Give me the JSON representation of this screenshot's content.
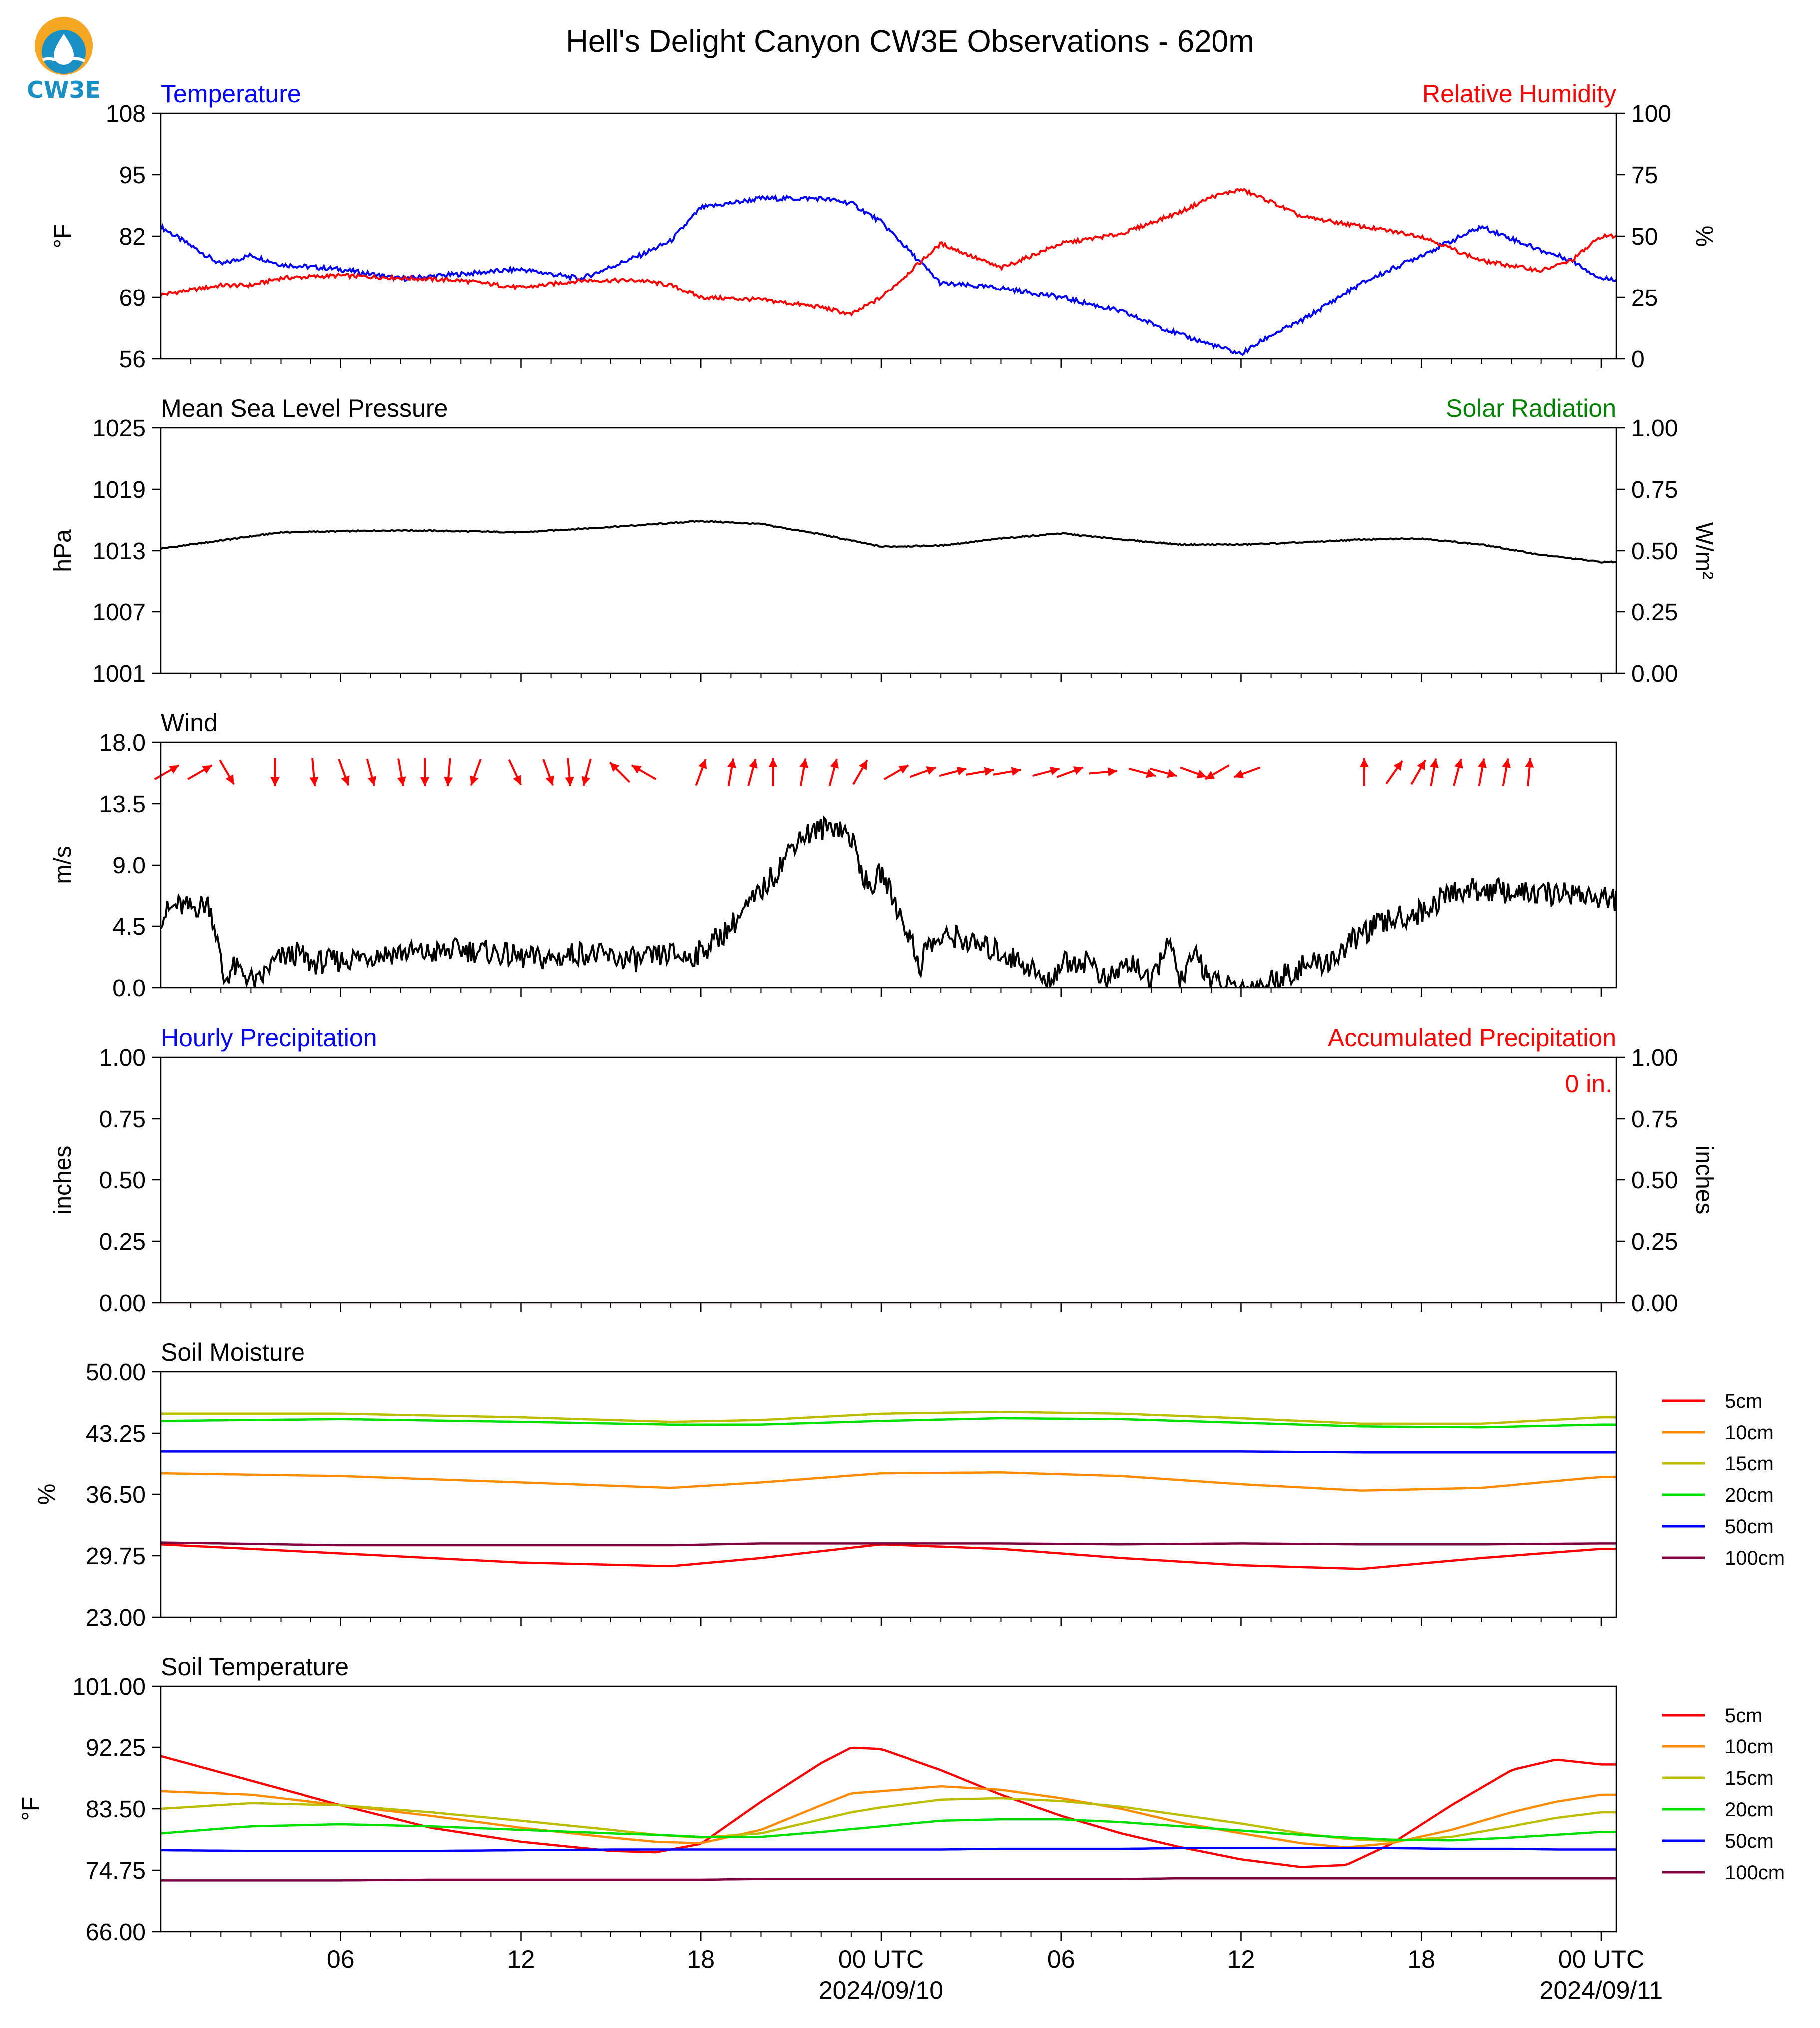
{
  "figure": {
    "title": "Hell's Delight Canyon CW3E Observations - 620m",
    "logo_text": "CW3E",
    "x_ticks": [
      "06",
      "12",
      "18",
      "00 UTC",
      "06",
      "12",
      "18",
      "00 UTC"
    ],
    "x_dates": [
      "2024/09/10",
      "2024/09/11"
    ]
  },
  "colors": {
    "temperature": "#0000ff",
    "humidity": "#ff0000",
    "solar": "#008000",
    "black": "#000000",
    "soil": [
      "#ff0000",
      "#ff8c00",
      "#bdbd00",
      "#00e000",
      "#0000ff",
      "#800040"
    ]
  },
  "chart_data": [
    {
      "id": "temp_rh",
      "type": "line",
      "left_title": "Temperature",
      "right_title": "Relative Humidity",
      "ylabel": "°F",
      "y2label": "%",
      "ylim": [
        56,
        108
      ],
      "yticks": [
        "56",
        "69",
        "82",
        "95",
        "108"
      ],
      "y2lim": [
        0,
        100
      ],
      "y2ticks": [
        "0",
        "25",
        "50",
        "75",
        "100"
      ],
      "x_hours": [
        0,
        2,
        3,
        4,
        6,
        8,
        10,
        12,
        14,
        16,
        17,
        18,
        20,
        22,
        23,
        24,
        26,
        28,
        30,
        32,
        34,
        35,
        36,
        37,
        38,
        40,
        42,
        44,
        46,
        47,
        48
      ],
      "series": [
        {
          "name": "Temperature",
          "axis": "left",
          "values": [
            84,
            76,
            78,
            76,
            75,
            73,
            74,
            75,
            73,
            78,
            81,
            88,
            90,
            90,
            89,
            85,
            72,
            71,
            69,
            66,
            61,
            59,
            57,
            61,
            64,
            72,
            78,
            84,
            79,
            77,
            73
          ]
        },
        {
          "name": "Relative Humidity",
          "axis": "right",
          "values": [
            26,
            30,
            30,
            33,
            34,
            33,
            32,
            29,
            32,
            32,
            30,
            25,
            24,
            21,
            18,
            25,
            47,
            37,
            47,
            51,
            60,
            66,
            69,
            64,
            58,
            54,
            50,
            40,
            36,
            40,
            50
          ]
        }
      ]
    },
    {
      "id": "pressure",
      "type": "line",
      "left_title": "Mean Sea Level Pressure",
      "right_title": "Solar Radiation",
      "ylabel": "hPa",
      "y2label": "W/m²",
      "ylim": [
        1001,
        1025
      ],
      "yticks": [
        "1001",
        "1007",
        "1013",
        "1019",
        "1025"
      ],
      "y2lim": [
        0,
        1
      ],
      "y2ticks": [
        "0.00",
        "0.25",
        "0.50",
        "0.75",
        "1.00"
      ],
      "x_hours": [
        0,
        4,
        8,
        12,
        16,
        18,
        20,
        22,
        24,
        26,
        28,
        30,
        32,
        34,
        36,
        38,
        40,
        42,
        44,
        46,
        48
      ],
      "series": [
        {
          "name": "Mean Sea Level Pressure",
          "axis": "left",
          "values": [
            1013.2,
            1014.8,
            1015.0,
            1014.8,
            1015.5,
            1015.9,
            1015.6,
            1014.6,
            1013.4,
            1013.5,
            1014.2,
            1014.7,
            1014.1,
            1013.6,
            1013.6,
            1013.8,
            1014.1,
            1014.2,
            1013.6,
            1012.6,
            1011.9
          ]
        }
      ]
    },
    {
      "id": "wind",
      "type": "line",
      "left_title": "Wind",
      "ylabel": "m/s",
      "ylim": [
        0,
        18
      ],
      "yticks": [
        "0.0",
        "4.5",
        "9.0",
        "13.5",
        "18.0"
      ],
      "x_hours": [
        0,
        0.5,
        1,
        1.6,
        1.8,
        2.1,
        2.4,
        2.8,
        3.2,
        3.6,
        4,
        4.6,
        5,
        6,
        7,
        8,
        9,
        10,
        11,
        12,
        13,
        14,
        15,
        16,
        17,
        17.5,
        18,
        19,
        19.8,
        20.5,
        21.2,
        21.8,
        22.5,
        23,
        23.3,
        23.6,
        24,
        24.5,
        25,
        25.3,
        25.5,
        26,
        26.5,
        27,
        28,
        29,
        29.5,
        30,
        31,
        31.5,
        32,
        32.5,
        33,
        33.5,
        34,
        34.5,
        35,
        35.5,
        36,
        36.5,
        37,
        38,
        39,
        40,
        41,
        42,
        43,
        44,
        45,
        46,
        47,
        48
      ],
      "series": [
        {
          "name": "Wind speed",
          "axis": "left",
          "values": [
            5.2,
            6.0,
            5.8,
            6.2,
            4.5,
            0.5,
            1.5,
            1.0,
            0.2,
            1.5,
            2.2,
            2.5,
            1.8,
            2.0,
            2.4,
            2.6,
            2.5,
            2.8,
            2.6,
            2.2,
            2.1,
            2.6,
            2.2,
            2.0,
            2.5,
            2.2,
            2.6,
            4.5,
            6.5,
            8.5,
            11.0,
            11.5,
            12.0,
            11.0,
            9.0,
            7.0,
            8.5,
            6.0,
            3.5,
            1.5,
            3.0,
            3.5,
            3.8,
            3.2,
            2.6,
            1.5,
            0.2,
            1.8,
            2.0,
            0.3,
            1.5,
            1.8,
            0.0,
            3.5,
            0.5,
            2.5,
            0.5,
            0.0,
            0.0,
            0.0,
            0.5,
            1.5,
            2.0,
            4.0,
            5.0,
            5.5,
            7.0,
            7.2,
            7.0,
            6.8,
            7.0,
            6.5
          ]
        }
      ],
      "vectors": {
        "hours": [
          0.2,
          1.3,
          2.2,
          3.8,
          5.1,
          6.1,
          7.0,
          8.0,
          8.8,
          9.6,
          10.5,
          11.8,
          12.9,
          13.6,
          14.2,
          15.3,
          16.1,
          18.0,
          19.0,
          19.7,
          20.4,
          21.4,
          22.4,
          23.3,
          24.5,
          25.4,
          26.4,
          27.3,
          28.2,
          29.5,
          30.3,
          31.4,
          32.7,
          33.4,
          34.4,
          35.2,
          36.2,
          40.1,
          41.1,
          41.9,
          42.4,
          43.2,
          44.0,
          44.8,
          45.6
        ],
        "directions_deg": [
          240,
          240,
          330,
          360,
          355,
          340,
          345,
          350,
          360,
          5,
          20,
          335,
          340,
          355,
          15,
          135,
          120,
          200,
          190,
          195,
          180,
          190,
          195,
          210,
          240,
          250,
          255,
          260,
          260,
          255,
          250,
          265,
          285,
          285,
          290,
          60,
          70,
          180,
          215,
          210,
          190,
          195,
          190,
          190,
          185
        ],
        "speeds": [
          6,
          6,
          0.5,
          1.5,
          2.2,
          2.4,
          2.6,
          2.5,
          2.6,
          2.7,
          2.5,
          2.2,
          2.4,
          2.3,
          2.0,
          2.4,
          2.5,
          3.0,
          5.5,
          6.5,
          8.5,
          11.5,
          11.0,
          7.0,
          3.5,
          3.5,
          3.0,
          2.5,
          1.5,
          1.8,
          0.5,
          1.5,
          3.0,
          0.5,
          1.5,
          1.0,
          1.5,
          2.0,
          4.5,
          5.5,
          6.5,
          7.0,
          7.2,
          7.0,
          6.8
        ],
        "unit": "m/s"
      }
    },
    {
      "id": "precip",
      "type": "line",
      "left_title": "Hourly Precipitation",
      "right_title": "Accumulated Precipitation",
      "annotation": "0 in.",
      "ylabel": "inches",
      "y2label": "inches",
      "ylim": [
        0,
        1
      ],
      "yticks": [
        "0.00",
        "0.25",
        "0.50",
        "0.75",
        "1.00"
      ],
      "y2lim": [
        0,
        1
      ],
      "y2ticks": [
        "0.00",
        "0.25",
        "0.50",
        "0.75",
        "1.00"
      ],
      "x_hours": [
        0,
        48
      ],
      "series": [
        {
          "name": "Hourly Precipitation",
          "axis": "left",
          "values": [
            0,
            0
          ]
        },
        {
          "name": "Accumulated Precipitation",
          "axis": "right",
          "values": [
            0,
            0
          ]
        }
      ]
    },
    {
      "id": "soil_moisture",
      "type": "line",
      "left_title": "Soil Moisture",
      "ylabel": "%",
      "ylim": [
        23,
        50
      ],
      "yticks": [
        "23.00",
        "29.75",
        "36.50",
        "43.25",
        "50.00"
      ],
      "legend": [
        "5cm",
        "10cm",
        "15cm",
        "20cm",
        "50cm",
        "100cm"
      ],
      "x_hours": [
        0,
        6,
        12,
        17,
        20,
        24,
        28,
        32,
        36,
        40,
        44,
        48
      ],
      "series": [
        {
          "name": "5cm",
          "values": [
            31.0,
            30.0,
            29.0,
            28.6,
            29.5,
            31.0,
            30.5,
            29.5,
            28.7,
            28.3,
            29.5,
            30.5
          ]
        },
        {
          "name": "10cm",
          "values": [
            38.8,
            38.5,
            37.8,
            37.2,
            37.8,
            38.8,
            38.9,
            38.5,
            37.6,
            36.9,
            37.2,
            38.4
          ]
        },
        {
          "name": "15cm",
          "values": [
            45.4,
            45.4,
            45.0,
            44.5,
            44.7,
            45.4,
            45.6,
            45.4,
            44.9,
            44.3,
            44.3,
            45.0
          ]
        },
        {
          "name": "20cm",
          "values": [
            44.6,
            44.8,
            44.5,
            44.2,
            44.2,
            44.6,
            44.9,
            44.8,
            44.4,
            44.0,
            43.9,
            44.2
          ]
        },
        {
          "name": "50cm",
          "values": [
            41.2,
            41.2,
            41.2,
            41.2,
            41.2,
            41.2,
            41.2,
            41.2,
            41.2,
            41.1,
            41.1,
            41.1
          ]
        },
        {
          "name": "100cm",
          "values": [
            31.2,
            30.9,
            30.9,
            30.9,
            31.1,
            31.1,
            31.1,
            31.0,
            31.1,
            31.0,
            31.0,
            31.1
          ]
        }
      ]
    },
    {
      "id": "soil_temp",
      "type": "line",
      "left_title": "Soil Temperature",
      "ylabel": "°F",
      "ylim": [
        66,
        101
      ],
      "yticks": [
        "66.00",
        "74.75",
        "83.50",
        "92.25",
        "101.00"
      ],
      "legend": [
        "5cm",
        "10cm",
        "15cm",
        "20cm",
        "50cm",
        "100cm"
      ],
      "x_hours": [
        0,
        3,
        6,
        9,
        12,
        15,
        16.5,
        18,
        20,
        22,
        23,
        24,
        26,
        28,
        30,
        32,
        34,
        36,
        38,
        39.5,
        41,
        43,
        45,
        46.5,
        48
      ],
      "series": [
        {
          "name": "5cm",
          "values": [
            91.0,
            87.5,
            84.0,
            80.8,
            78.8,
            77.5,
            77.3,
            78.5,
            84.5,
            90.0,
            92.2,
            92.0,
            89.0,
            85.5,
            82.5,
            80.0,
            78.0,
            76.3,
            75.2,
            75.5,
            78.5,
            84.0,
            89.0,
            90.5,
            89.8
          ]
        },
        {
          "name": "10cm",
          "values": [
            86.0,
            85.5,
            84.0,
            82.5,
            80.8,
            79.4,
            78.8,
            78.6,
            80.5,
            84.0,
            85.7,
            86.0,
            86.7,
            86.2,
            85.0,
            83.5,
            81.5,
            80.0,
            78.6,
            78.0,
            78.6,
            80.5,
            83.0,
            84.5,
            85.5
          ]
        },
        {
          "name": "15cm",
          "values": [
            83.5,
            84.3,
            84.0,
            83.0,
            81.8,
            80.5,
            79.8,
            79.4,
            80.0,
            82.0,
            83.0,
            83.7,
            84.8,
            85.0,
            84.6,
            83.8,
            82.6,
            81.4,
            80.0,
            79.2,
            78.9,
            79.5,
            81.0,
            82.2,
            83.0
          ]
        },
        {
          "name": "20cm",
          "values": [
            80.0,
            81.0,
            81.3,
            81.0,
            80.5,
            80.0,
            79.8,
            79.5,
            79.5,
            80.2,
            80.6,
            81.0,
            81.8,
            82.0,
            82.0,
            81.6,
            81.0,
            80.4,
            79.8,
            79.4,
            79.1,
            79.0,
            79.4,
            79.8,
            80.2
          ]
        },
        {
          "name": "50cm",
          "values": [
            77.6,
            77.5,
            77.5,
            77.5,
            77.6,
            77.7,
            77.7,
            77.7,
            77.7,
            77.7,
            77.7,
            77.7,
            77.7,
            77.8,
            77.8,
            77.8,
            77.9,
            77.9,
            77.9,
            77.9,
            77.9,
            77.8,
            77.8,
            77.7,
            77.7
          ]
        },
        {
          "name": "100cm",
          "values": [
            73.3,
            73.3,
            73.3,
            73.4,
            73.4,
            73.4,
            73.4,
            73.4,
            73.5,
            73.5,
            73.5,
            73.5,
            73.5,
            73.5,
            73.5,
            73.5,
            73.6,
            73.6,
            73.6,
            73.6,
            73.6,
            73.6,
            73.6,
            73.6,
            73.6
          ]
        }
      ]
    }
  ]
}
